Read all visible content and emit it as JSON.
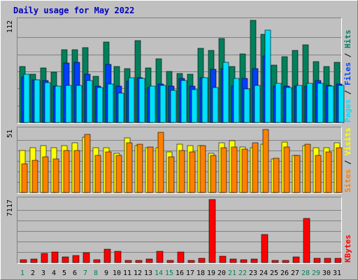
{
  "title": "Daily usage for May 2022",
  "colors": {
    "background": "#c0c0c0",
    "plot_bg": "#c0c0c0",
    "title": "#0000c0",
    "hits": "#00805c",
    "files": "#0040ff",
    "pages": "#00e0ff",
    "visits": "#ffff00",
    "sites": "#ff8000",
    "kbytes": "#ff0000",
    "weekend_label": "#00805c",
    "weekday_label": "#000000"
  },
  "chart_data": [
    {
      "type": "bar",
      "title": "Daily usage for May 2022",
      "ylabel_parts": [
        {
          "text": "Pages",
          "color": "#00e0ff"
        },
        {
          "text": " / ",
          "color": "#000000"
        },
        {
          "text": "Files",
          "color": "#0040ff"
        },
        {
          "text": " / ",
          "color": "#000000"
        },
        {
          "text": "Hits",
          "color": "#00805c"
        }
      ],
      "ymax_label": "112",
      "ylim": [
        0,
        112
      ],
      "categories": [
        "1",
        "2",
        "3",
        "4",
        "5",
        "6",
        "7",
        "8",
        "9",
        "10",
        "11",
        "12",
        "13",
        "14",
        "15",
        "16",
        "17",
        "18",
        "19",
        "20",
        "21",
        "22",
        "23",
        "24",
        "25",
        "26",
        "27",
        "28",
        "29",
        "30",
        "31"
      ],
      "series": [
        {
          "name": "Hits",
          "values": [
            61,
            53,
            60,
            55,
            80,
            80,
            82,
            51,
            88,
            61,
            59,
            90,
            60,
            70,
            56,
            54,
            53,
            81,
            79,
            92,
            61,
            75,
            112,
            97,
            63,
            72,
            79,
            85,
            67,
            61,
            66
          ]
        },
        {
          "name": "Files",
          "values": [
            50,
            47,
            46,
            40,
            65,
            66,
            53,
            40,
            64,
            40,
            45,
            49,
            38,
            42,
            40,
            48,
            40,
            49,
            58,
            59,
            40,
            48,
            59,
            73,
            40,
            40,
            40,
            40,
            46,
            41,
            42
          ]
        },
        {
          "name": "Pages",
          "values": [
            53,
            47,
            44,
            40,
            41,
            41,
            46,
            38,
            42,
            32,
            49,
            48,
            40,
            41,
            35,
            46,
            36,
            49,
            38,
            66,
            48,
            37,
            41,
            101,
            43,
            38,
            41,
            43,
            43,
            40,
            41
          ]
        }
      ]
    },
    {
      "type": "bar",
      "ylabel_parts": [
        {
          "text": "Sites",
          "color": "#ff8000"
        },
        {
          "text": " / ",
          "color": "#000000"
        },
        {
          "text": "Visits",
          "color": "#ffff00"
        }
      ],
      "ymax_label": "51",
      "ylim": [
        0,
        51
      ],
      "categories": [
        "1",
        "2",
        "3",
        "4",
        "5",
        "6",
        "7",
        "8",
        "9",
        "10",
        "11",
        "12",
        "13",
        "14",
        "15",
        "16",
        "17",
        "18",
        "19",
        "20",
        "21",
        "22",
        "23",
        "24",
        "25",
        "26",
        "27",
        "28",
        "29",
        "30",
        "31"
      ],
      "series": [
        {
          "name": "Visits",
          "values": [
            34,
            36,
            38,
            36,
            38,
            40,
            45,
            36,
            36,
            32,
            44,
            38,
            36,
            36,
            33,
            39,
            38,
            38,
            32,
            40,
            42,
            37,
            36,
            39,
            27,
            41,
            30,
            38,
            36,
            36,
            40
          ]
        },
        {
          "name": "Sites",
          "values": [
            23,
            26,
            29,
            27,
            34,
            34,
            47,
            30,
            33,
            30,
            40,
            39,
            37,
            49,
            29,
            34,
            33,
            38,
            30,
            36,
            37,
            35,
            40,
            51,
            28,
            37,
            30,
            39,
            30,
            33,
            36
          ]
        }
      ]
    },
    {
      "type": "bar",
      "ylabel_parts": [
        {
          "text": "KBytes",
          "color": "#ff0000"
        }
      ],
      "ymax_label": "7117",
      "ylim": [
        0,
        7117
      ],
      "categories": [
        "1",
        "2",
        "3",
        "4",
        "5",
        "6",
        "7",
        "8",
        "9",
        "10",
        "11",
        "12",
        "13",
        "14",
        "15",
        "16",
        "17",
        "18",
        "19",
        "20",
        "21",
        "22",
        "23",
        "24",
        "25",
        "26",
        "27",
        "28",
        "29",
        "30",
        "31"
      ],
      "series": [
        {
          "name": "KBytes",
          "values": [
            280,
            420,
            1050,
            1150,
            660,
            760,
            1100,
            330,
            1480,
            1230,
            250,
            250,
            360,
            1290,
            250,
            1210,
            250,
            490,
            7117,
            720,
            400,
            320,
            400,
            3150,
            250,
            250,
            650,
            4950,
            510,
            510,
            510
          ]
        }
      ]
    }
  ],
  "x_labels": [
    {
      "text": "1",
      "weekend": true
    },
    {
      "text": "2",
      "weekend": false
    },
    {
      "text": "3",
      "weekend": false
    },
    {
      "text": "4",
      "weekend": false
    },
    {
      "text": "5",
      "weekend": false
    },
    {
      "text": "6",
      "weekend": false
    },
    {
      "text": "7",
      "weekend": true
    },
    {
      "text": "8",
      "weekend": true
    },
    {
      "text": "9",
      "weekend": false
    },
    {
      "text": "10",
      "weekend": false
    },
    {
      "text": "11",
      "weekend": false
    },
    {
      "text": "12",
      "weekend": false
    },
    {
      "text": "13",
      "weekend": false
    },
    {
      "text": "14",
      "weekend": true
    },
    {
      "text": "15",
      "weekend": true
    },
    {
      "text": "16",
      "weekend": false
    },
    {
      "text": "17",
      "weekend": false
    },
    {
      "text": "18",
      "weekend": false
    },
    {
      "text": "19",
      "weekend": false
    },
    {
      "text": "20",
      "weekend": false
    },
    {
      "text": "21",
      "weekend": true
    },
    {
      "text": "22",
      "weekend": true
    },
    {
      "text": "23",
      "weekend": false
    },
    {
      "text": "24",
      "weekend": false
    },
    {
      "text": "25",
      "weekend": false
    },
    {
      "text": "26",
      "weekend": false
    },
    {
      "text": "27",
      "weekend": false
    },
    {
      "text": "28",
      "weekend": true
    },
    {
      "text": "29",
      "weekend": true
    },
    {
      "text": "30",
      "weekend": false
    },
    {
      "text": "31",
      "weekend": false
    }
  ]
}
